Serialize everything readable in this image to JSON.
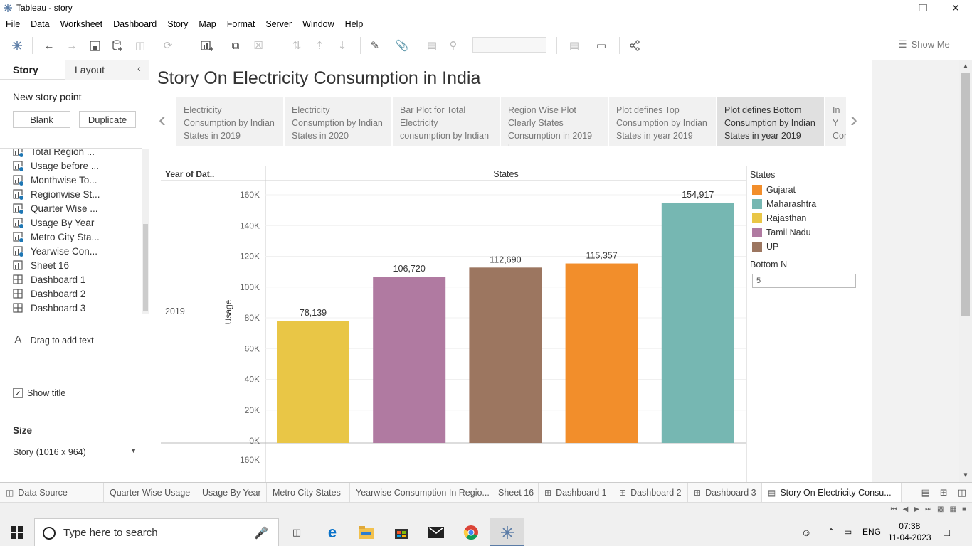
{
  "window": {
    "title": "Tableau - story",
    "minimize": "—",
    "restore": "❐",
    "close": "✕"
  },
  "menu": [
    "File",
    "Data",
    "Worksheet",
    "Dashboard",
    "Story",
    "Map",
    "Format",
    "Server",
    "Window",
    "Help"
  ],
  "toolbar": {
    "show_me": "Show Me"
  },
  "left_panel": {
    "tab_story": "Story",
    "tab_layout": "Layout",
    "collapse": "‹",
    "new_story_point": "New story point",
    "blank_button": "Blank",
    "duplicate_button": "Duplicate",
    "sheets": [
      {
        "label": "Total Region ...",
        "type": "worksheet"
      },
      {
        "label": "Usage before ...",
        "type": "worksheet"
      },
      {
        "label": "Monthwise To...",
        "type": "worksheet"
      },
      {
        "label": "Regionwise St...",
        "type": "worksheet"
      },
      {
        "label": "Quarter Wise ...",
        "type": "worksheet"
      },
      {
        "label": "Usage By Year",
        "type": "worksheet"
      },
      {
        "label": "Metro City Sta...",
        "type": "worksheet"
      },
      {
        "label": "Yearwise  Con...",
        "type": "worksheet"
      },
      {
        "label": "Sheet 16",
        "type": "worksheet"
      },
      {
        "label": "Dashboard  1",
        "type": "dashboard"
      },
      {
        "label": "Dashboard 2",
        "type": "dashboard"
      },
      {
        "label": "Dashboard 3",
        "type": "dashboard"
      }
    ],
    "drag_text": "Drag to add text",
    "drag_text_glyph": "A",
    "show_title": "Show title",
    "size_label": "Size",
    "size_value": "Story (1016 x 964)"
  },
  "story": {
    "title": "Story On Electricity Consumption in India",
    "points": [
      {
        "lines": [
          "Electricity",
          "Consumption by Indian",
          "States in 2019"
        ],
        "active": false
      },
      {
        "lines": [
          "Electricity",
          "Consumption by Indian",
          "States in 2020"
        ],
        "active": false
      },
      {
        "lines": [
          "Bar Plot for Total",
          "Electricity",
          "consumption by Indian"
        ],
        "active": false
      },
      {
        "lines": [
          "Region Wise Plot",
          "Clearly States",
          "Consumption in 2019 is"
        ],
        "active": false
      },
      {
        "lines": [
          "Plot defines Top",
          "Consumption by Indian",
          "States in year 2019"
        ],
        "active": false
      },
      {
        "lines": [
          "Plot defines Bottom",
          "Consumption by Indian",
          "States in year 2019"
        ],
        "active": true
      },
      {
        "lines": [
          "In Y",
          "Con",
          "wa"
        ],
        "active": false
      }
    ],
    "prev": "‹",
    "next": "›"
  },
  "chart_data": {
    "type": "bar",
    "title": "",
    "column_header": "States",
    "row_header": "Year of Dat..",
    "row_value": "2019",
    "ylabel": "Usage",
    "xlabel": "",
    "categories": [
      "Rajasthan",
      "Tamil Nadu",
      "UP",
      "Gujarat",
      "Maharashtra"
    ],
    "values": [
      78139,
      106720,
      112690,
      115357,
      154917
    ],
    "value_labels": [
      "78,139",
      "106,720",
      "112,690",
      "115,357",
      "154,917"
    ],
    "colors": [
      "#E9C646",
      "#B07AA1",
      "#9C7660",
      "#F28E2B",
      "#76B7B2"
    ],
    "ylim": [
      0,
      160000
    ],
    "yticks": [
      "160K",
      "140K",
      "120K",
      "100K",
      "80K",
      "60K",
      "40K",
      "20K",
      "0K"
    ],
    "next_pane_tick": "160K",
    "legend_title": "States",
    "legend": [
      {
        "name": "Gujarat",
        "color": "#F28E2B"
      },
      {
        "name": "Maharashtra",
        "color": "#76B7B2"
      },
      {
        "name": "Rajasthan",
        "color": "#E9C646"
      },
      {
        "name": "Tamil Nadu",
        "color": "#B07AA1"
      },
      {
        "name": "UP",
        "color": "#9C7660"
      }
    ]
  },
  "filter": {
    "label": "Bottom N",
    "value": "5"
  },
  "sheet_tabs": [
    {
      "label": "Data Source",
      "icon": "database-icon"
    },
    {
      "label": "Quarter Wise Usage",
      "icon": ""
    },
    {
      "label": "Usage By Year",
      "icon": ""
    },
    {
      "label": "Metro City States",
      "icon": ""
    },
    {
      "label": "Yearwise  Consumption In Regio...",
      "icon": ""
    },
    {
      "label": "Sheet 16",
      "icon": ""
    },
    {
      "label": "Dashboard  1",
      "icon": "dashboard-icon"
    },
    {
      "label": "Dashboard 2",
      "icon": "dashboard-icon"
    },
    {
      "label": "Dashboard 3",
      "icon": "dashboard-icon"
    },
    {
      "label": "Story On Electricity Consu...",
      "icon": "story-icon"
    }
  ],
  "taskbar": {
    "search_placeholder": "Type here to search",
    "time": "07:38",
    "date": "11-04-2023",
    "lang": "ENG"
  }
}
